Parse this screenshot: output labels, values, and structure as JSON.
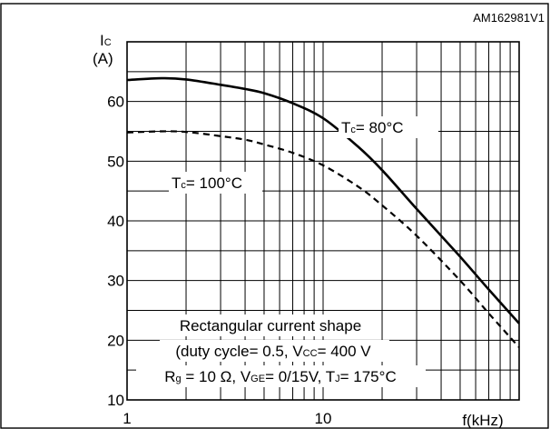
{
  "chart_data": {
    "type": "line",
    "figure_id": "AM162981V1",
    "title": "",
    "xlabel": "f(kHz)",
    "ylabel": "Ic (A)",
    "ylabel_main": "I",
    "ylabel_sub": "C",
    "ylabel_unit": "(A)",
    "xscale": "log",
    "xlim": [
      1,
      100
    ],
    "ylim": [
      10,
      70
    ],
    "xtick_labels": [
      "1",
      "10"
    ],
    "ytick_labels": [
      "10",
      "20",
      "30",
      "40",
      "50",
      "60"
    ],
    "grid": true,
    "series": [
      {
        "name": "Tc= 80°C",
        "name_main": "T",
        "name_sub": "c",
        "name_value": "= 80°C",
        "style": "solid",
        "x": [
          1,
          1.5,
          2,
          3,
          4,
          5,
          7,
          10,
          15,
          20,
          30,
          50,
          70,
          100
        ],
        "y": [
          63.6,
          63.9,
          63.7,
          62.8,
          62.1,
          61.4,
          59.7,
          57.2,
          52.5,
          48.5,
          42,
          34,
          28.5,
          22.8
        ]
      },
      {
        "name": "Tc= 100°C",
        "name_main": "T",
        "name_sub": "c",
        "name_value": "= 100°C",
        "style": "dashed",
        "x": [
          1,
          1.5,
          2,
          3,
          4,
          5,
          7,
          10,
          15,
          20,
          30,
          50,
          70,
          100
        ],
        "y": [
          54.8,
          55,
          54.9,
          54.2,
          53.6,
          52.8,
          51.4,
          49.3,
          45.8,
          42.6,
          37.5,
          30,
          24.5,
          18.8
        ]
      }
    ],
    "annotation": {
      "line1": "Rectangular current shape",
      "line2_a": "(duty cycle= 0.5, V",
      "line2_sub": "CC",
      "line2_b": "= 400 V",
      "line3_a": "R",
      "line3_sub1": "g",
      "line3_b": " = 10 Ω, V",
      "line3_sub2": "GE",
      "line3_c": "= 0/15V, T",
      "line3_sub3": "J",
      "line3_d": "= 175°C"
    }
  }
}
